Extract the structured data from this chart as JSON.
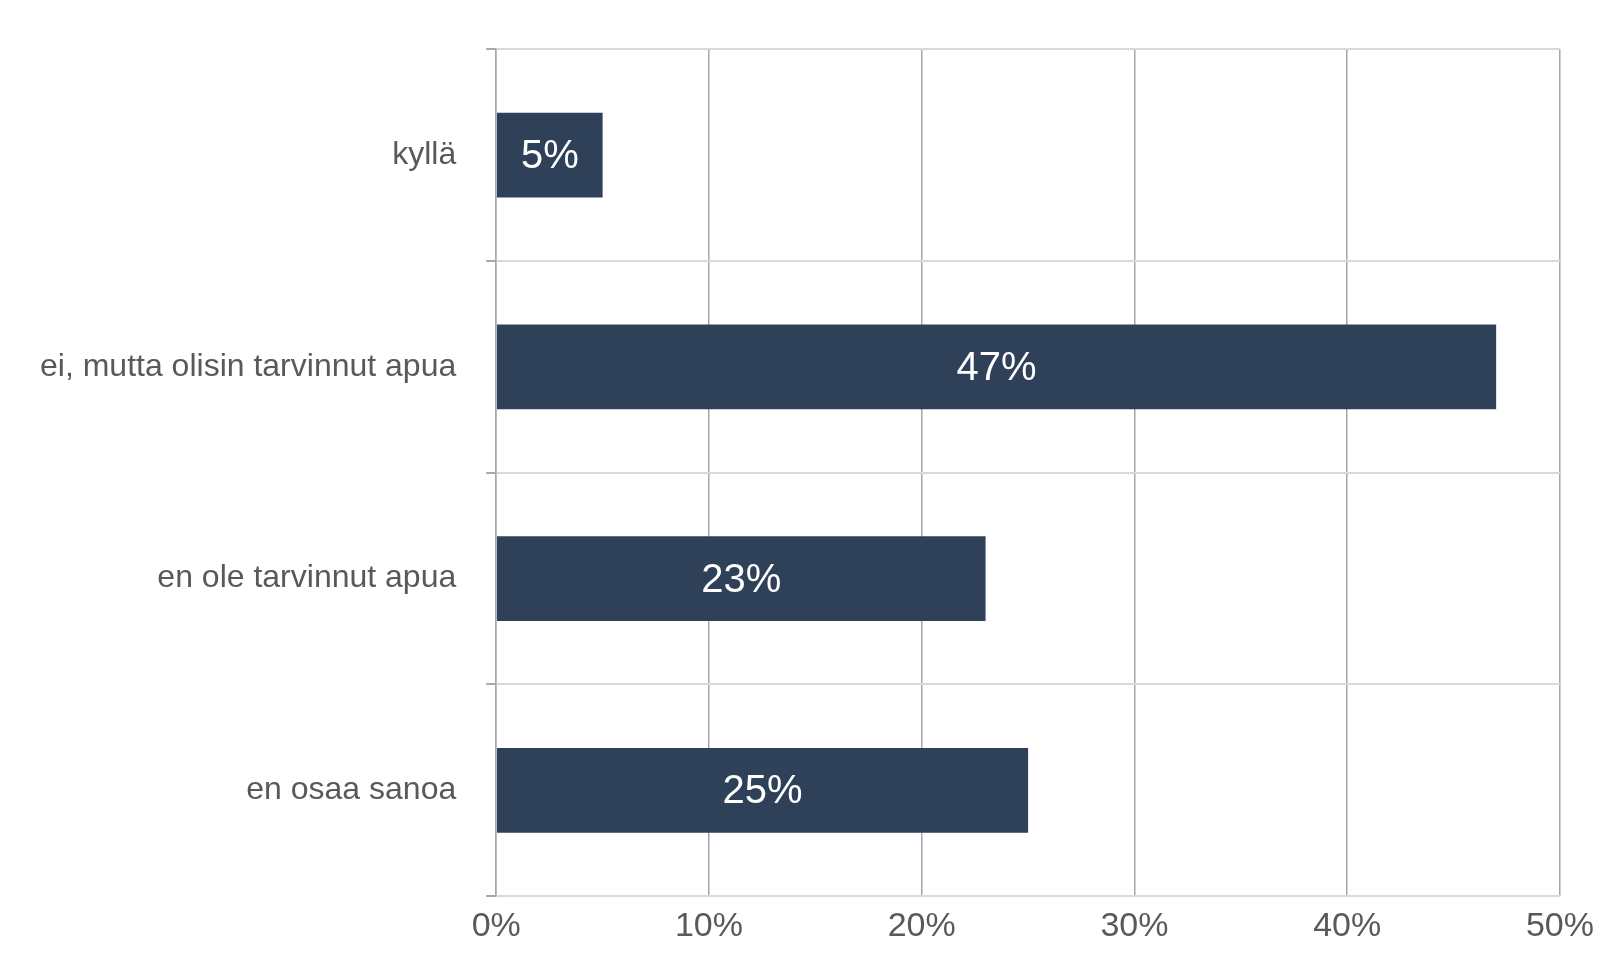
{
  "chart_data": {
    "type": "bar",
    "orientation": "horizontal",
    "categories": [
      "kyllä",
      "ei, mutta olisin tarvinnut apua",
      "en ole tarvinnut apua",
      "en osaa sanoa"
    ],
    "values": [
      5,
      47,
      23,
      25
    ],
    "color": "#2f4059",
    "value_labels": [
      "5%",
      "47%",
      "23%",
      "25%"
    ],
    "xlim": [
      0,
      50
    ],
    "xticks": [
      {
        "value": 0,
        "label": "0%"
      },
      {
        "value": 10,
        "label": "10%"
      },
      {
        "value": 20,
        "label": "20%"
      },
      {
        "value": 30,
        "label": "30%"
      },
      {
        "value": 40,
        "label": "40%"
      },
      {
        "value": 50,
        "label": "50%"
      }
    ],
    "grid": true,
    "legend": false
  }
}
